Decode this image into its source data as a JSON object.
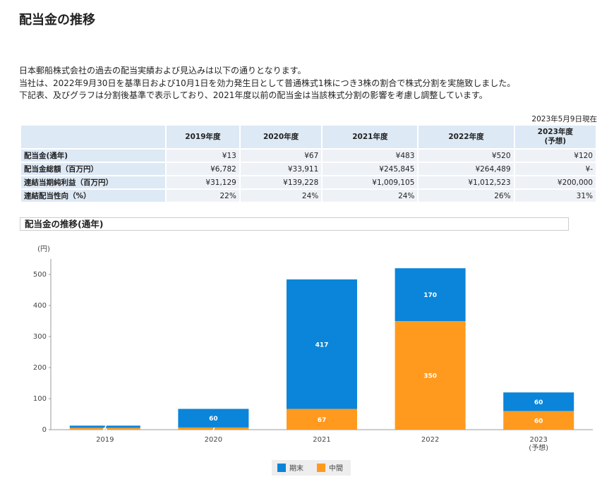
{
  "header": {
    "title": "配当金の推移"
  },
  "intro": [
    "日本郵船株式会社の過去の配当実績および見込みは以下の通りとなります。",
    "当社は、2022年9月30日を基準日および10月1日を効力発生日として普通株式1株につき3株の割合で株式分割を実施致しました。",
    "下記表、及びグラフは分割後基準で表示しており、2021年度以前の配当金は当該株式分割の影響を考慮し調整しています。"
  ],
  "date_note": "2023年5月9日現在",
  "table": {
    "columns": [
      "2019年度",
      "2020年度",
      "2021年度",
      "2022年度",
      "2023年度\n(予想)"
    ],
    "rows": [
      {
        "label": "配当金(通年)",
        "cells": [
          "¥13",
          "¥67",
          "¥483",
          "¥520",
          "¥120"
        ]
      },
      {
        "label": "配当金総額（百万円）",
        "cells": [
          "¥6,782",
          "¥33,911",
          "¥245,845",
          "¥264,489",
          "¥-"
        ]
      },
      {
        "label": "連結当期純利益（百万円）",
        "cells": [
          "¥31,129",
          "¥139,228",
          "¥1,009,105",
          "¥1,012,523",
          "¥200,000"
        ]
      },
      {
        "label": "連結配当性向（%）",
        "cells": [
          "22%",
          "24%",
          "24%",
          "26%",
          "31%"
        ]
      }
    ]
  },
  "chart_title": "配当金の推移(通年)",
  "chart_data": {
    "type": "stacked_bar",
    "y_label": "(円)",
    "categories": [
      "2019",
      "2020",
      "2021",
      "2022",
      "2023\n(予想)"
    ],
    "series": [
      {
        "name": "期末",
        "color": "#0a85d9",
        "values": [
          7,
          60,
          417,
          170,
          60
        ]
      },
      {
        "name": "中間",
        "color": "#ff9a1f",
        "values": [
          6,
          7,
          67,
          350,
          60
        ]
      }
    ],
    "ylim": [
      0,
      550
    ],
    "yticks": [
      0,
      100,
      200,
      300,
      400,
      500
    ],
    "grid": false
  }
}
